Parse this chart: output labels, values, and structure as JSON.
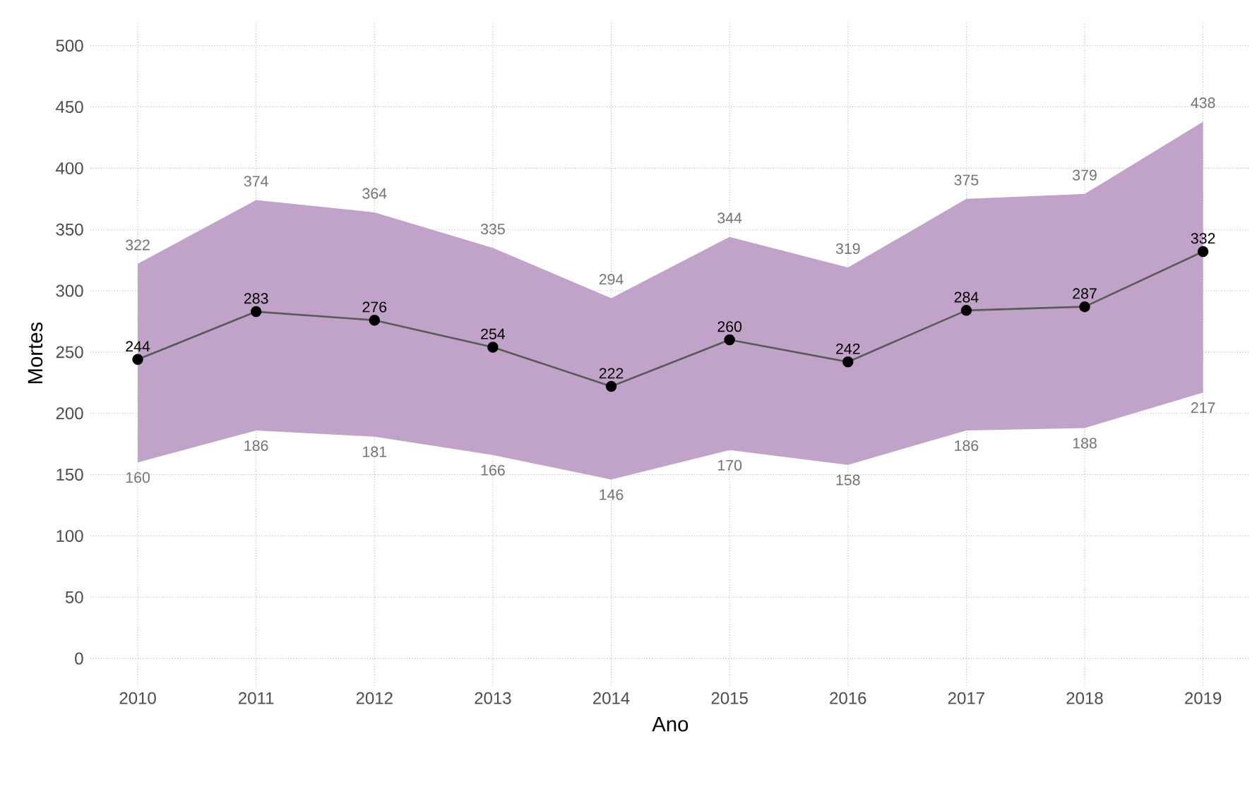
{
  "chart_data": {
    "type": "line",
    "xlabel": "Ano",
    "ylabel": "Mortes",
    "x": [
      2010,
      2011,
      2012,
      2013,
      2014,
      2015,
      2016,
      2017,
      2018,
      2019
    ],
    "series": [
      {
        "color": "#5a5a5a",
        "values": [
          244,
          283,
          276,
          254,
          222,
          260,
          242,
          284,
          287,
          332
        ],
        "lower": [
          160,
          186,
          181,
          166,
          146,
          170,
          158,
          186,
          188,
          217
        ],
        "upper": [
          322,
          374,
          364,
          335,
          294,
          344,
          319,
          375,
          379,
          438
        ]
      }
    ],
    "annotations": [
      {
        "text": "322",
        "x": 2010,
        "y": 322
      },
      {
        "text": "374",
        "x": 2011,
        "y": 374
      },
      {
        "text": "364",
        "x": 2012,
        "y": 364
      },
      {
        "text": "335",
        "x": 2013,
        "y": 335
      },
      {
        "text": "294",
        "x": 2014,
        "y": 294
      },
      {
        "text": "344",
        "x": 2015,
        "y": 344
      },
      {
        "text": "319",
        "x": 2016,
        "y": 319
      },
      {
        "text": "375",
        "x": 2017,
        "y": 375
      },
      {
        "text": "379",
        "x": 2018,
        "y": 379
      },
      {
        "text": "438",
        "x": 2019,
        "y": 438
      },
      {
        "text": "160",
        "x": 2010,
        "y": 160
      },
      {
        "text": "186",
        "x": 2011,
        "y": 186
      },
      {
        "text": "181",
        "x": 2012,
        "y": 181
      },
      {
        "text": "166",
        "x": 2013,
        "y": 166
      },
      {
        "text": "146",
        "x": 2014,
        "y": 146
      },
      {
        "text": "170",
        "x": 2015,
        "y": 170
      },
      {
        "text": "158",
        "x": 2016,
        "y": 158
      },
      {
        "text": "186",
        "x": 2017,
        "y": 186
      },
      {
        "text": "188",
        "x": 2018,
        "y": 188
      },
      {
        "text": "217",
        "x": 2019,
        "y": 217
      }
    ],
    "xlim": [
      2009.6,
      2019.4
    ],
    "ylim": [
      -22,
      520
    ],
    "xticks": [
      2010,
      2011,
      2012,
      2013,
      2014,
      2015,
      2016,
      2017,
      2018,
      2019
    ],
    "yticks": [
      0,
      50,
      100,
      150,
      200,
      250,
      300,
      350,
      400,
      450,
      500
    ],
    "grid": true,
    "marker": "circle",
    "line_style": "solid",
    "data_labels": true
  }
}
